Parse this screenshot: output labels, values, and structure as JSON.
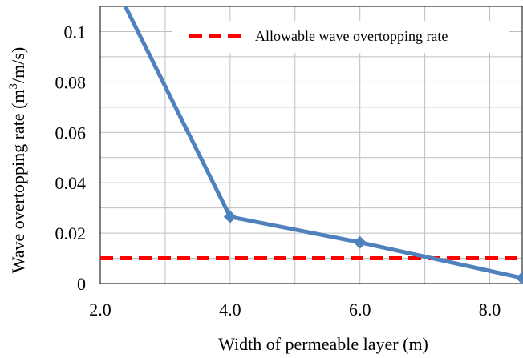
{
  "chart_data": {
    "type": "line",
    "xlabel": "Width of permeable layer (m)",
    "ylabel_main": "Wave overtopping rate (m",
    "ylabel_sup": "3",
    "ylabel_tail": "/m/s)",
    "xlim": [
      2.0,
      8.5
    ],
    "ylim": [
      0,
      0.11
    ],
    "x_ticks": [
      {
        "value": 2.0,
        "label": "2.0"
      },
      {
        "value": 4.0,
        "label": "4.0"
      },
      {
        "value": 6.0,
        "label": "6.0"
      },
      {
        "value": 8.0,
        "label": "8.0"
      }
    ],
    "y_ticks": [
      {
        "value": 0,
        "label": "0"
      },
      {
        "value": 0.02,
        "label": "0.02"
      },
      {
        "value": 0.04,
        "label": "0.04"
      },
      {
        "value": 0.06,
        "label": "0.06"
      },
      {
        "value": 0.08,
        "label": "0.08"
      },
      {
        "value": 0.1,
        "label": "0.1"
      }
    ],
    "x_grid": [
      2.0,
      3.0,
      4.0,
      5.0,
      6.0,
      7.0,
      8.0
    ],
    "y_grid": [
      0,
      0.01,
      0.02,
      0.03,
      0.04,
      0.05,
      0.06,
      0.07,
      0.08,
      0.09,
      0.1
    ],
    "grid": true,
    "series": [
      {
        "color": "#4f81bd",
        "marker": "diamond",
        "points": [
          {
            "x": 2.0,
            "y": 0.13
          },
          {
            "x": 4.0,
            "y": 0.0265
          },
          {
            "x": 6.0,
            "y": 0.0163
          },
          {
            "x": 8.5,
            "y": 0.0022
          }
        ]
      }
    ],
    "reference_lines": [
      {
        "name": "Allowable wave overtopping rate",
        "y": 0.01,
        "color": "#ff0000",
        "style": "dashed"
      }
    ],
    "legend_position": "top-right"
  }
}
